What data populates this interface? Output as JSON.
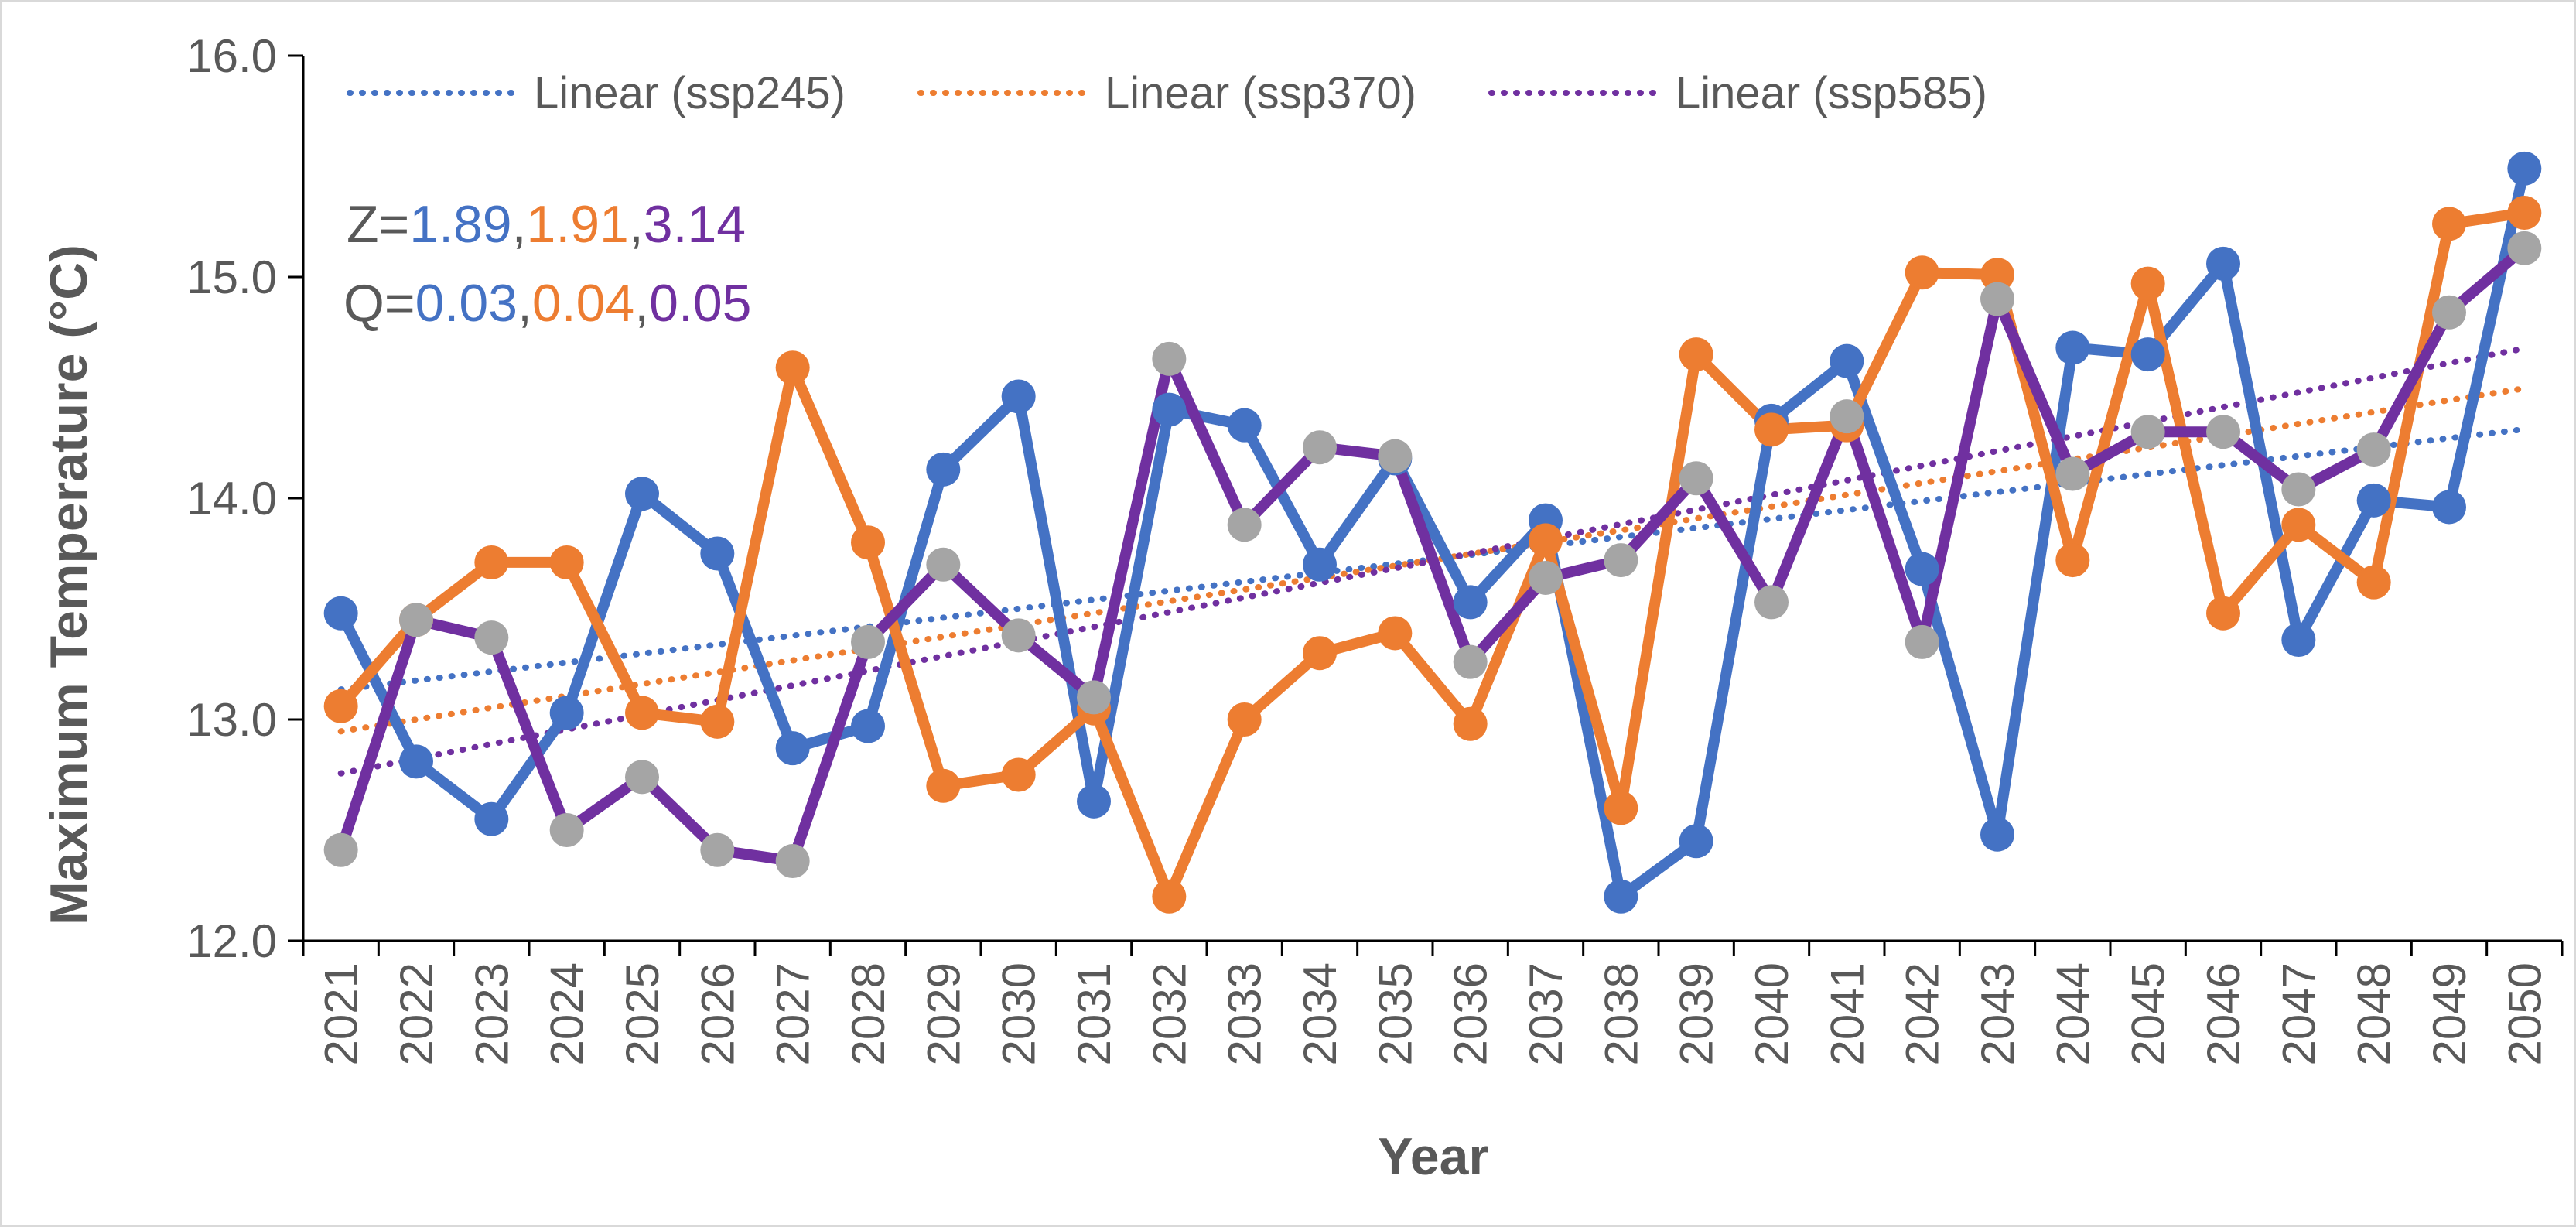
{
  "chart_data": {
    "type": "line",
    "title": "",
    "xlabel": "Year",
    "ylabel": "Maximum Temperature (°C)",
    "ylim": [
      12.0,
      16.0
    ],
    "yticks": [
      "12.0",
      "13.0",
      "14.0",
      "15.0",
      "16.0"
    ],
    "categories": [
      "2021",
      "2022",
      "2023",
      "2024",
      "2025",
      "2026",
      "2027",
      "2028",
      "2029",
      "2030",
      "2031",
      "2032",
      "2033",
      "2034",
      "2035",
      "2036",
      "2037",
      "2038",
      "2039",
      "2040",
      "2041",
      "2042",
      "2043",
      "2044",
      "2045",
      "2046",
      "2047",
      "2048",
      "2049",
      "2050"
    ],
    "grid": false,
    "legend_position": "top",
    "series": [
      {
        "key": "ssp245",
        "color": "#4472C4",
        "marker_color": "#4472C4",
        "values": [
          13.48,
          12.81,
          12.55,
          13.03,
          14.02,
          13.75,
          12.87,
          12.97,
          14.13,
          14.46,
          12.63,
          14.4,
          14.33,
          13.7,
          14.18,
          13.53,
          13.9,
          12.2,
          12.45,
          14.35,
          14.62,
          13.68,
          12.48,
          14.68,
          14.65,
          15.06,
          13.36,
          13.99,
          13.96,
          15.49
        ]
      },
      {
        "key": "ssp370",
        "color": "#ED7D31",
        "marker_color": "#ED7D31",
        "values": [
          13.06,
          13.45,
          13.71,
          13.71,
          13.03,
          12.99,
          14.59,
          13.8,
          12.7,
          12.75,
          13.05,
          12.2,
          13.0,
          13.3,
          13.39,
          12.98,
          13.81,
          12.6,
          14.65,
          14.31,
          14.33,
          15.02,
          15.01,
          13.72,
          14.97,
          13.48,
          13.88,
          13.62,
          15.24,
          15.29
        ]
      },
      {
        "key": "ssp585",
        "color": "#7030A0",
        "marker_color": "#A5A5A5",
        "values": [
          12.41,
          13.45,
          13.37,
          12.5,
          12.74,
          12.41,
          12.36,
          13.35,
          13.7,
          13.38,
          13.1,
          14.63,
          13.88,
          14.23,
          14.19,
          13.26,
          13.64,
          13.72,
          14.09,
          13.53,
          14.37,
          13.35,
          14.9,
          14.11,
          14.3,
          14.3,
          14.04,
          14.22,
          14.84,
          15.13
        ]
      }
    ],
    "legend": [
      {
        "label": "Linear (ssp245)",
        "color": "#4472C4"
      },
      {
        "label": "Linear (ssp370)",
        "color": "#ED7D31"
      },
      {
        "label": "Linear (ssp585)",
        "color": "#7030A0"
      }
    ],
    "annotations": {
      "z_prefix": "Z=",
      "z_values": [
        "1.89",
        "1.91",
        "3.14"
      ],
      "q_prefix": "Q=",
      "q_values": [
        "0.03",
        "0.04",
        "0.05"
      ],
      "separator": ","
    }
  }
}
